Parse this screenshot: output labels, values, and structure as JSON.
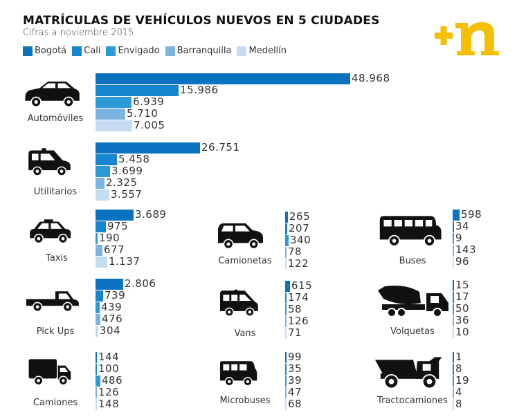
{
  "chart_data": {
    "type": "bar",
    "orientation": "horizontal",
    "title": "MATRÍCULAS DE VEHÍCULOS NUEVOS EN 5 CIUDADES",
    "subtitle": "Cifras a noviembre 2015",
    "legend_placement": "top-left",
    "series_names": [
      "Bogotá",
      "Cali",
      "Envigado",
      "Barranquilla",
      "Medellín"
    ],
    "series_colors": [
      "#0a72c0",
      "#1585cf",
      "#2d9ad8",
      "#7cb4e1",
      "#c4dcf1"
    ],
    "categories": [
      {
        "name": "Automóviles",
        "icon": "car-icon",
        "values": [
          48968,
          15986,
          6939,
          5710,
          7005
        ],
        "labels": [
          "48.968",
          "15.986",
          "6.939",
          "5.710",
          "7.005"
        ]
      },
      {
        "name": "Utilitarios",
        "icon": "suv-icon",
        "values": [
          26751,
          5458,
          3699,
          2325,
          3557
        ],
        "labels": [
          "26.751",
          "5.458",
          "3.699",
          "2.325",
          "3.557"
        ]
      },
      {
        "name": "Taxis",
        "icon": "taxi-icon",
        "values": [
          3689,
          975,
          190,
          677,
          1137
        ],
        "labels": [
          "3.689",
          "975",
          "190",
          "677",
          "1.137"
        ]
      },
      {
        "name": "Pick Ups",
        "icon": "pickup-icon",
        "values": [
          2806,
          739,
          439,
          476,
          304
        ],
        "labels": [
          "2.806",
          "739",
          "439",
          "476",
          "304"
        ]
      },
      {
        "name": "Camiones",
        "icon": "truck-icon",
        "values": [
          144,
          100,
          486,
          126,
          148
        ],
        "labels": [
          "144",
          "100",
          "486",
          "126",
          "148"
        ]
      },
      {
        "name": "Camionetas",
        "icon": "van-icon",
        "values": [
          265,
          207,
          340,
          78,
          122
        ],
        "labels": [
          "265",
          "207",
          "340",
          "78",
          "122"
        ]
      },
      {
        "name": "Vans",
        "icon": "minivan-icon",
        "values": [
          615,
          174,
          58,
          126,
          71
        ],
        "labels": [
          "615",
          "174",
          "58",
          "126",
          "71"
        ]
      },
      {
        "name": "Microbuses",
        "icon": "microbus-icon",
        "values": [
          99,
          35,
          39,
          47,
          68
        ],
        "labels": [
          "99",
          "35",
          "39",
          "47",
          "68"
        ]
      },
      {
        "name": "Buses",
        "icon": "bus-icon",
        "values": [
          598,
          34,
          9,
          143,
          96
        ],
        "labels": [
          "598",
          "34",
          "9",
          "143",
          "96"
        ]
      },
      {
        "name": "Volquetas",
        "icon": "mixer-truck-icon",
        "values": [
          15,
          17,
          50,
          36,
          10
        ],
        "labels": [
          "15",
          "17",
          "50",
          "36",
          "10"
        ]
      },
      {
        "name": "Tractocamiones",
        "icon": "dump-truck-icon",
        "values": [
          1,
          8,
          19,
          4,
          8
        ],
        "labels": [
          "1",
          "8",
          "19",
          "4",
          "8"
        ]
      }
    ]
  },
  "logo_text": "+n"
}
